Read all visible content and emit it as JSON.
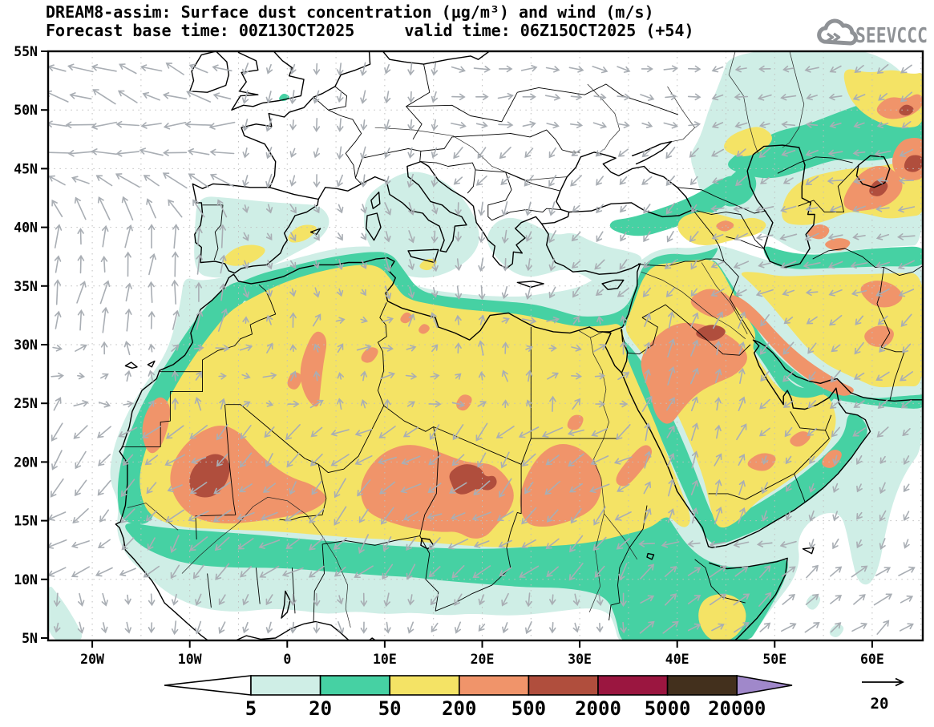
{
  "header": {
    "title": "DREAM8-assim: Surface dust concentration (μg/m³) and wind (m/s)",
    "base_time": "Forecast base time: 00Z13OCT2025",
    "valid_time": "valid time: 06Z15OCT2025 (+54)",
    "logo_text": "SEEVCCC"
  },
  "map": {
    "lat_ticks": [
      "55N",
      "50N",
      "45N",
      "40N",
      "35N",
      "30N",
      "25N",
      "20N",
      "15N",
      "10N",
      "5N"
    ],
    "lon_ticks": [
      "20W",
      "10W",
      "0",
      "10E",
      "20E",
      "30E",
      "40E",
      "50E",
      "60E"
    ]
  },
  "colorbar": {
    "boundary_labels": [
      "5",
      "20",
      "50",
      "200",
      "500",
      "2000",
      "5000",
      "20000"
    ],
    "segment_colors": [
      "#cfeee6",
      "#46d1a3",
      "#f4e365",
      "#f0946a",
      "#b04e3d",
      "#9b1640",
      "#43301d",
      "#a088ca"
    ],
    "below_min_color": "#ffffff",
    "outline_color": "#000000"
  },
  "wind": {
    "reference_value": "20",
    "arrow_color": "#a9aeb4"
  },
  "chart_data": {
    "type": "heatmap",
    "title": "DREAM8-assim: Surface dust concentration (μg/m³) and wind (m/s)",
    "forecast_base_time": "00Z13OCT2025",
    "valid_time": "06Z15OCT2025",
    "forecast_hour": "+54",
    "variable": "Surface dust concentration",
    "units": "μg/m³",
    "wind_units": "m/s",
    "wind_reference_ms": 20,
    "levels": [
      5,
      20,
      50,
      200,
      500,
      2000,
      5000,
      20000
    ],
    "level_colors": [
      "#cfeee6",
      "#46d1a3",
      "#f4e365",
      "#f0946a",
      "#b04e3d",
      "#9b1640",
      "#43301d",
      "#a088ca"
    ],
    "lat_axis": [
      "5N",
      "10N",
      "15N",
      "20N",
      "25N",
      "30N",
      "35N",
      "40N",
      "45N",
      "50N",
      "55N"
    ],
    "lon_axis": [
      "20W",
      "10W",
      "0",
      "10E",
      "20E",
      "30E",
      "40E",
      "50E",
      "60E"
    ],
    "max_shaded_level_on_map": 2000,
    "notable_maxima": [
      {
        "region": "Bodele depression (Chad), ~18E 18N",
        "range": "500-2000"
      },
      {
        "region": "Mali/Mauritania, ~8W 18N",
        "range": "500-2000"
      },
      {
        "region": "Iraq / northern Saudi Arabia",
        "range": "500-2000"
      },
      {
        "region": "Aral region ~60E 43N",
        "range": "500-2000"
      }
    ]
  }
}
